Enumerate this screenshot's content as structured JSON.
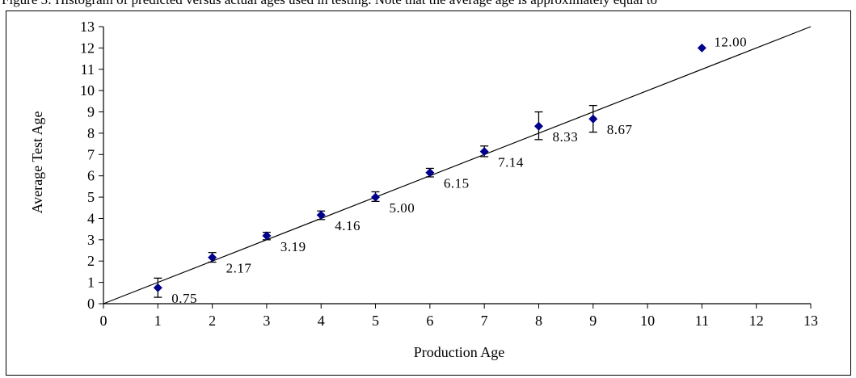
{
  "caption": "Figure 3: Histogram of predicted versus actual ages used in testing. Note that the average age is approximately equal to",
  "chart_data": {
    "type": "scatter",
    "title": "",
    "xlabel": "Production Age",
    "ylabel": "Average Test Age",
    "xlim": [
      0,
      13
    ],
    "ylim": [
      0,
      13
    ],
    "xticks": [
      0,
      1,
      2,
      3,
      4,
      5,
      6,
      7,
      8,
      9,
      10,
      11,
      12,
      13
    ],
    "yticks": [
      0,
      1,
      2,
      3,
      4,
      5,
      6,
      7,
      8,
      9,
      10,
      11,
      12,
      13
    ],
    "grid": false,
    "marker_color": "#00008B",
    "line_color": "#000000",
    "reference_line": {
      "from": [
        0,
        0
      ],
      "to": [
        13,
        13
      ]
    },
    "points": [
      {
        "x": 1,
        "y": 0.75,
        "err_low": 0.3,
        "err_high": 1.2,
        "label": "0.75"
      },
      {
        "x": 2,
        "y": 2.17,
        "err_low": 1.95,
        "err_high": 2.4,
        "label": "2.17"
      },
      {
        "x": 3,
        "y": 3.19,
        "err_low": 3.0,
        "err_high": 3.35,
        "label": "3.19"
      },
      {
        "x": 4,
        "y": 4.16,
        "err_low": 3.95,
        "err_high": 4.35,
        "label": "4.16"
      },
      {
        "x": 5,
        "y": 5.0,
        "err_low": 4.8,
        "err_high": 5.25,
        "label": "5.00"
      },
      {
        "x": 6,
        "y": 6.15,
        "err_low": 5.95,
        "err_high": 6.35,
        "label": "6.15"
      },
      {
        "x": 7,
        "y": 7.14,
        "err_low": 6.9,
        "err_high": 7.4,
        "label": "7.14"
      },
      {
        "x": 8,
        "y": 8.33,
        "err_low": 7.7,
        "err_high": 9.0,
        "label": "8.33"
      },
      {
        "x": 9,
        "y": 8.67,
        "err_low": 8.05,
        "err_high": 9.3,
        "label": "8.67"
      },
      {
        "x": 11,
        "y": 12.0,
        "label": "12.00"
      }
    ]
  }
}
